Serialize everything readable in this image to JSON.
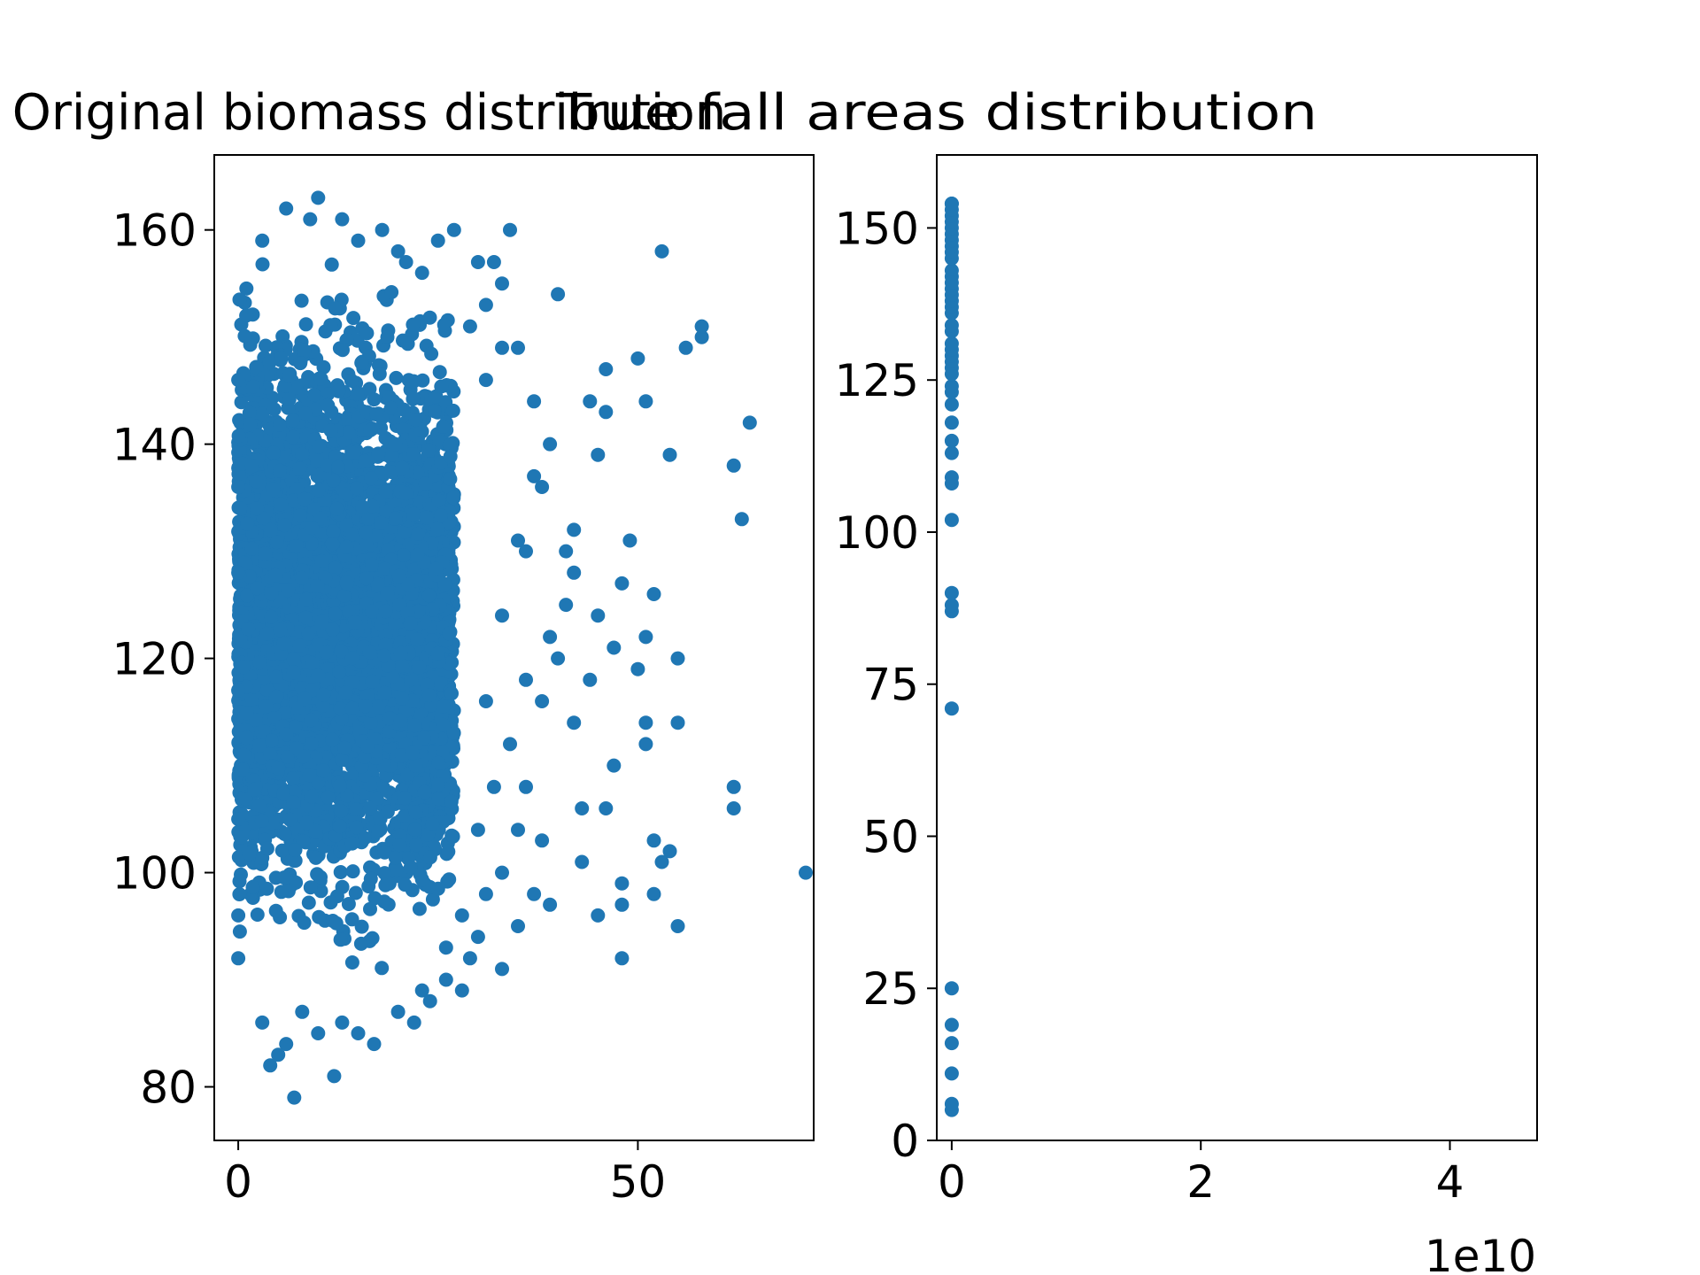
{
  "chart_data": [
    {
      "type": "scatter",
      "title": "Original biomass distribution",
      "xlabel": "",
      "ylabel": "",
      "xlim": [
        -3,
        72
      ],
      "ylim": [
        75,
        167
      ],
      "xticks": [
        0,
        50
      ],
      "xtick_labels": [
        "0",
        "50"
      ],
      "yticks": [
        80,
        100,
        120,
        140,
        160
      ],
      "ytick_labels": [
        "80",
        "100",
        "120",
        "140",
        "160"
      ],
      "grid": false,
      "marker_color": "#1f77b4",
      "core_cluster": {
        "x_range": [
          0,
          27
        ],
        "y_range": [
          89,
          158
        ],
        "approx_points": 4500
      },
      "outlier_points": [
        [
          71,
          100
        ],
        [
          64,
          142
        ],
        [
          63,
          133
        ],
        [
          62,
          138
        ],
        [
          62,
          108
        ],
        [
          62,
          106
        ],
        [
          58,
          150
        ],
        [
          58,
          151
        ],
        [
          56,
          149
        ],
        [
          55,
          120
        ],
        [
          55,
          114
        ],
        [
          55,
          95
        ],
        [
          54,
          102
        ],
        [
          53,
          101
        ],
        [
          53,
          158
        ],
        [
          54,
          139
        ],
        [
          52,
          98
        ],
        [
          52,
          103
        ],
        [
          51,
          112
        ],
        [
          51,
          114
        ],
        [
          51,
          144
        ],
        [
          50,
          148
        ],
        [
          50,
          119
        ],
        [
          51,
          122
        ],
        [
          52,
          126
        ],
        [
          48,
          127
        ],
        [
          48,
          92
        ],
        [
          48,
          97
        ],
        [
          48,
          99
        ],
        [
          49,
          131
        ],
        [
          46,
          147
        ],
        [
          45,
          139
        ],
        [
          46,
          143
        ],
        [
          46,
          106
        ],
        [
          45,
          96
        ],
        [
          44,
          144
        ],
        [
          43,
          101
        ],
        [
          43,
          106
        ],
        [
          42,
          132
        ],
        [
          42,
          114
        ],
        [
          41,
          130
        ],
        [
          40,
          154
        ],
        [
          39,
          97
        ],
        [
          38,
          103
        ],
        [
          38,
          136
        ],
        [
          37,
          98
        ],
        [
          37,
          144
        ],
        [
          36,
          130
        ],
        [
          35,
          95
        ],
        [
          33,
          91
        ],
        [
          34,
          160
        ],
        [
          33,
          155
        ],
        [
          32,
          157
        ],
        [
          30,
          157
        ],
        [
          27,
          160
        ],
        [
          25,
          159
        ],
        [
          28,
          89
        ],
        [
          26,
          93
        ],
        [
          29,
          92
        ],
        [
          31,
          98
        ],
        [
          33,
          100
        ],
        [
          35,
          104
        ],
        [
          36,
          108
        ],
        [
          38,
          116
        ],
        [
          40,
          120
        ],
        [
          41,
          125
        ],
        [
          44,
          118
        ],
        [
          47,
          110
        ],
        [
          34,
          112
        ],
        [
          36,
          118
        ],
        [
          39,
          122
        ],
        [
          42,
          128
        ],
        [
          45,
          124
        ],
        [
          47,
          121
        ],
        [
          32,
          108
        ],
        [
          30,
          104
        ],
        [
          31,
          116
        ],
        [
          33,
          124
        ],
        [
          35,
          131
        ],
        [
          37,
          137
        ],
        [
          39,
          140
        ],
        [
          31,
          146
        ],
        [
          33,
          149
        ],
        [
          29,
          151
        ],
        [
          31,
          153
        ],
        [
          35,
          149
        ],
        [
          30,
          94
        ],
        [
          28,
          96
        ],
        [
          26,
          90
        ],
        [
          24,
          88
        ],
        [
          23,
          89
        ],
        [
          20,
          87
        ],
        [
          22,
          86
        ],
        [
          17,
          84
        ],
        [
          15,
          85
        ],
        [
          10,
          85
        ],
        [
          8,
          87
        ],
        [
          6,
          84
        ],
        [
          4,
          82
        ],
        [
          5,
          83
        ],
        [
          3,
          86
        ],
        [
          7,
          79
        ],
        [
          12,
          81
        ],
        [
          13,
          86
        ],
        [
          9,
          161
        ],
        [
          10,
          163
        ],
        [
          6,
          162
        ],
        [
          13,
          161
        ],
        [
          15,
          159
        ],
        [
          18,
          160
        ],
        [
          20,
          158
        ],
        [
          21,
          157
        ],
        [
          23,
          156
        ],
        [
          3,
          159
        ],
        [
          1,
          152
        ],
        [
          0,
          146
        ],
        [
          0,
          96
        ],
        [
          0,
          92
        ],
        [
          0,
          105
        ],
        [
          0,
          117
        ],
        [
          0,
          128
        ],
        [
          0,
          136
        ]
      ]
    },
    {
      "type": "scatter",
      "title": "True fall areas distribution",
      "xlabel": "",
      "ylabel": "",
      "xlim": [
        -0.12,
        4.7
      ],
      "ylim": [
        0,
        162
      ],
      "xticks": [
        0,
        2,
        4
      ],
      "xtick_labels": [
        "0",
        "2",
        "4"
      ],
      "x_offset_label": "1e10",
      "yticks": [
        0,
        25,
        50,
        75,
        100,
        125,
        150
      ],
      "ytick_labels": [
        "0",
        "25",
        "50",
        "75",
        "100",
        "125",
        "150"
      ],
      "grid": false,
      "marker_color": "#1f77b4",
      "x": [
        0,
        0,
        0,
        0,
        0,
        0,
        0,
        0,
        0,
        0,
        0,
        0,
        0,
        0,
        0,
        0,
        0,
        0,
        0,
        0,
        0,
        0,
        0,
        0,
        0,
        0,
        0,
        0,
        0,
        0,
        0,
        0,
        0,
        0,
        0,
        0,
        0,
        0,
        0,
        0,
        0,
        0,
        0,
        0,
        0,
        0
      ],
      "y": [
        5,
        6,
        11,
        16,
        19,
        25,
        71,
        87,
        88,
        90,
        102,
        108,
        109,
        113,
        115,
        118,
        121,
        123,
        124,
        127,
        128,
        129,
        130,
        131,
        133,
        134,
        136,
        137,
        138,
        139,
        140,
        142,
        143,
        145,
        146,
        147,
        148,
        149,
        150,
        151,
        152,
        153,
        154,
        154,
        141,
        126
      ]
    }
  ]
}
